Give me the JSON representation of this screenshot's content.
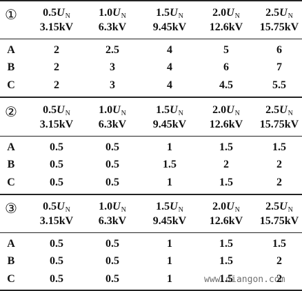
{
  "sections": [
    {
      "marker": "①",
      "headers": [
        {
          "factor": "0.5",
          "symbol": "U",
          "subscript": "N",
          "voltage": "3.15kV"
        },
        {
          "factor": "1.0",
          "symbol": "U",
          "subscript": "N",
          "voltage": "6.3kV"
        },
        {
          "factor": "1.5",
          "symbol": "U",
          "subscript": "N",
          "voltage": "9.45kV"
        },
        {
          "factor": "2.0",
          "symbol": "U",
          "subscript": "N",
          "voltage": "12.6kV"
        },
        {
          "factor": "2.5",
          "symbol": "U",
          "subscript": "N",
          "voltage": "15.75kV"
        }
      ],
      "rows": [
        {
          "label": "A",
          "values": [
            2,
            2.5,
            4,
            5,
            6
          ]
        },
        {
          "label": "B",
          "values": [
            2,
            3,
            4,
            6,
            7
          ]
        },
        {
          "label": "C",
          "values": [
            2,
            3,
            4,
            4.5,
            5.5
          ]
        }
      ]
    },
    {
      "marker": "②",
      "headers": [
        {
          "factor": "0.5",
          "symbol": "U",
          "subscript": "N",
          "voltage": "3.15kV"
        },
        {
          "factor": "1.0",
          "symbol": "U",
          "subscript": "N",
          "voltage": "6.3kV"
        },
        {
          "factor": "1.5",
          "symbol": "U",
          "subscript": "N",
          "voltage": "9.45kV"
        },
        {
          "factor": "2.0",
          "symbol": "U",
          "subscript": "N",
          "voltage": "12.6kV"
        },
        {
          "factor": "2.5",
          "symbol": "U",
          "subscript": "N",
          "voltage": "15.75kV"
        }
      ],
      "rows": [
        {
          "label": "A",
          "values": [
            0.5,
            0.5,
            1,
            1.5,
            1.5
          ]
        },
        {
          "label": "B",
          "values": [
            0.5,
            0.5,
            1.5,
            2,
            2
          ]
        },
        {
          "label": "C",
          "values": [
            0.5,
            0.5,
            1,
            1.5,
            2
          ]
        }
      ]
    },
    {
      "marker": "③",
      "headers": [
        {
          "factor": "0.5",
          "symbol": "U",
          "subscript": "N",
          "voltage": "3.15kV"
        },
        {
          "factor": "1.0",
          "symbol": "U",
          "subscript": "N",
          "voltage": "6.3kV"
        },
        {
          "factor": "1.5",
          "symbol": "U",
          "subscript": "N",
          "voltage": "9.45kV"
        },
        {
          "factor": "2.0",
          "symbol": "U",
          "subscript": "N",
          "voltage": "12.6kV"
        },
        {
          "factor": "2.5",
          "symbol": "U",
          "subscript": "N",
          "voltage": "15.75kV"
        }
      ],
      "rows": [
        {
          "label": "A",
          "values": [
            0.5,
            0.5,
            1,
            1.5,
            1.5
          ]
        },
        {
          "label": "B",
          "values": [
            0.5,
            0.5,
            1,
            1.5,
            2
          ]
        },
        {
          "label": "C",
          "values": [
            0.5,
            0.5,
            1,
            1.5,
            2
          ]
        }
      ]
    }
  ],
  "watermark": "www.diangon.com"
}
